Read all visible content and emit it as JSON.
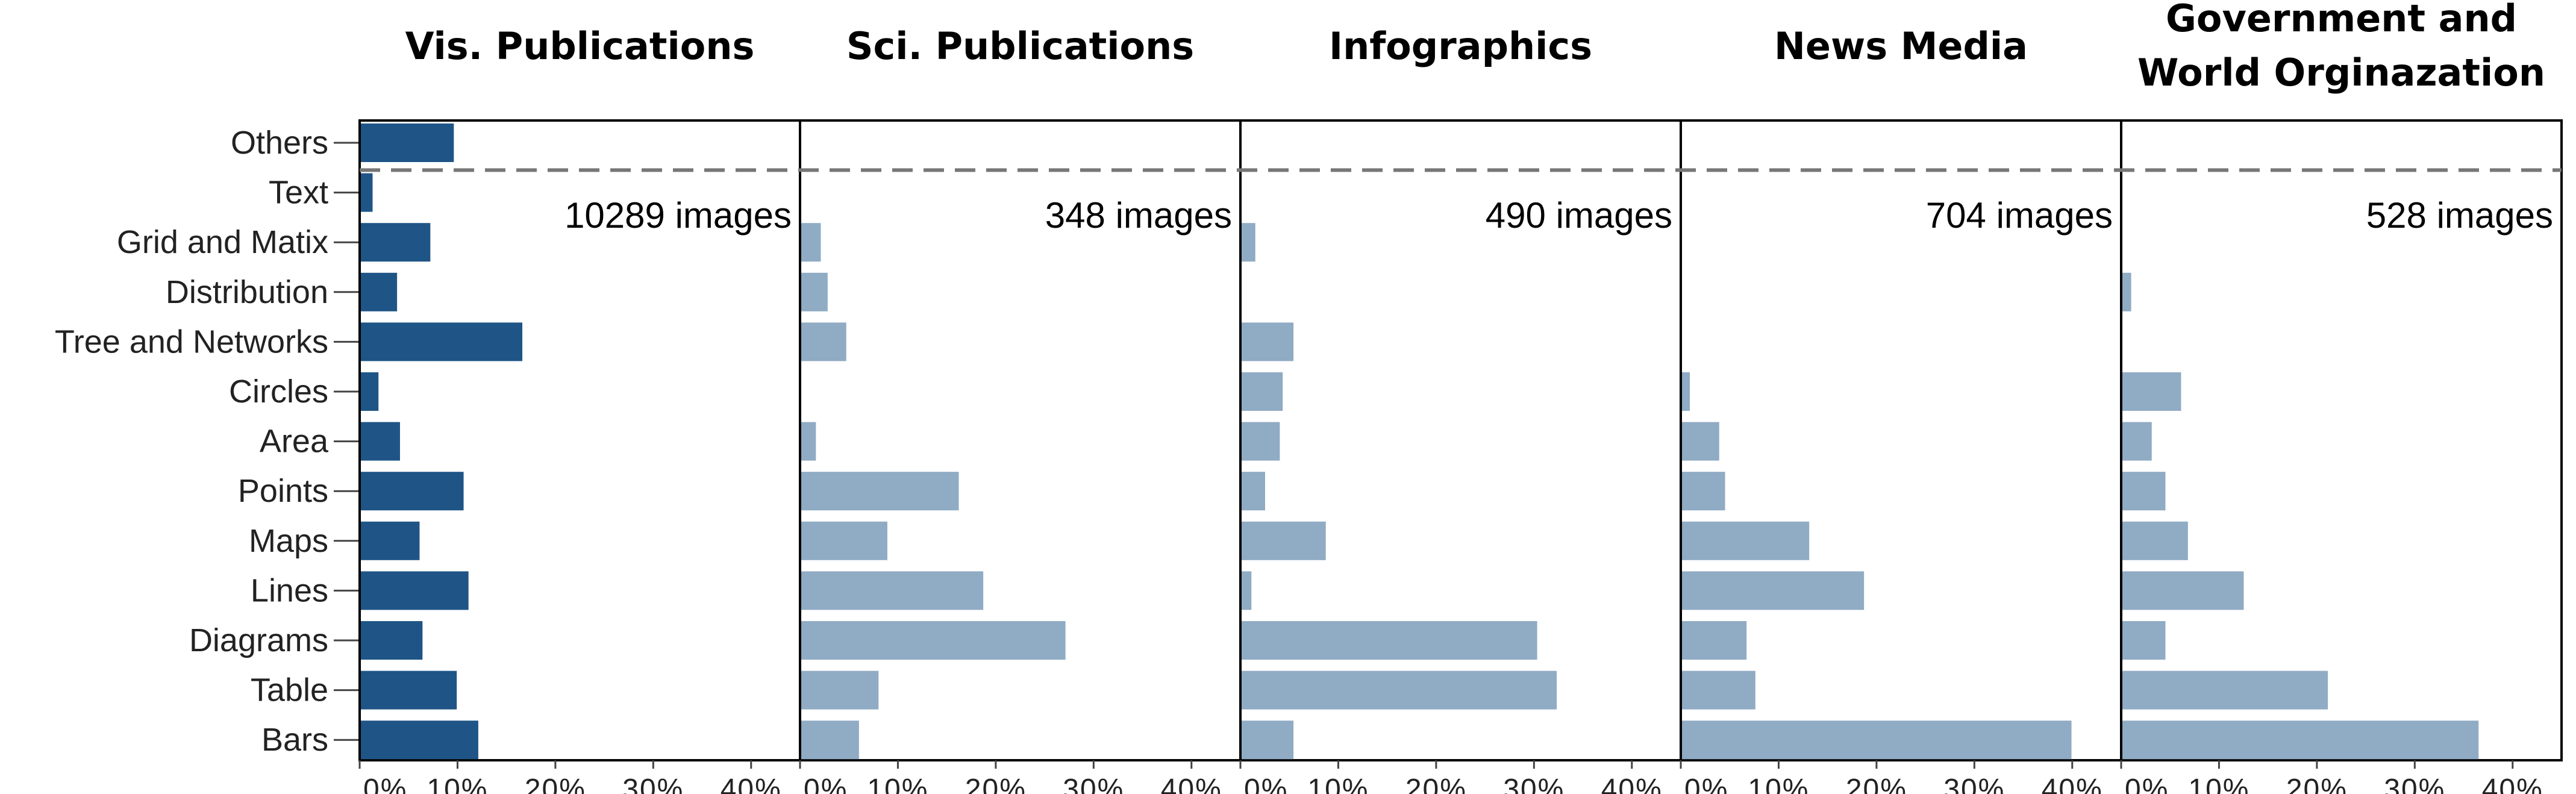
{
  "chart_data": {
    "type": "bar",
    "orientation": "horizontal",
    "categories": [
      "Others",
      "Text",
      "Grid and Matix",
      "Distribution",
      "Tree and Networks",
      "Circles",
      "Area",
      "Points",
      "Maps",
      "Lines",
      "Diagrams",
      "Table",
      "Bars"
    ],
    "xlim": [
      0,
      45
    ],
    "x_ticks": [
      "0%",
      "10%",
      "20%",
      "30%",
      "40%"
    ],
    "x_tick_values": [
      0,
      10,
      20,
      30,
      40
    ],
    "colors": {
      "highlight": "#1f5586",
      "muted": "#90abc4",
      "dashed_line": "#777777"
    },
    "panels": [
      {
        "title": [
          "Vis. Publications"
        ],
        "count_label": "10289 images",
        "color": "#1f5586",
        "values": [
          9.5,
          1.2,
          7.1,
          3.7,
          16.5,
          1.8,
          4.0,
          10.5,
          6.0,
          11.0,
          6.3,
          9.8,
          12.0
        ]
      },
      {
        "title": [
          "Sci. Publications"
        ],
        "count_label": "348 images",
        "color": "#90abc4",
        "values": [
          0,
          0,
          2.0,
          2.7,
          4.6,
          0,
          1.5,
          16.1,
          8.8,
          18.6,
          27.0,
          7.9,
          5.9
        ]
      },
      {
        "title": [
          "Infographics"
        ],
        "count_label": "490 images",
        "color": "#90abc4",
        "values": [
          0,
          0,
          1.4,
          0,
          5.3,
          4.2,
          3.9,
          2.4,
          8.6,
          1.0,
          30.2,
          32.2,
          5.3
        ]
      },
      {
        "title": [
          "News Media"
        ],
        "count_label": "704 images",
        "color": "#90abc4",
        "values": [
          0,
          0,
          0,
          0,
          0,
          0.8,
          3.8,
          4.4,
          13.0,
          18.6,
          6.6,
          7.5,
          39.8
        ]
      },
      {
        "title": [
          "Government and",
          "World Orginazation"
        ],
        "count_label": "528 images",
        "color": "#90abc4",
        "values": [
          0,
          0,
          0,
          0.9,
          0,
          6.0,
          3.0,
          4.4,
          6.7,
          12.4,
          4.4,
          21.0,
          36.4
        ]
      }
    ]
  }
}
